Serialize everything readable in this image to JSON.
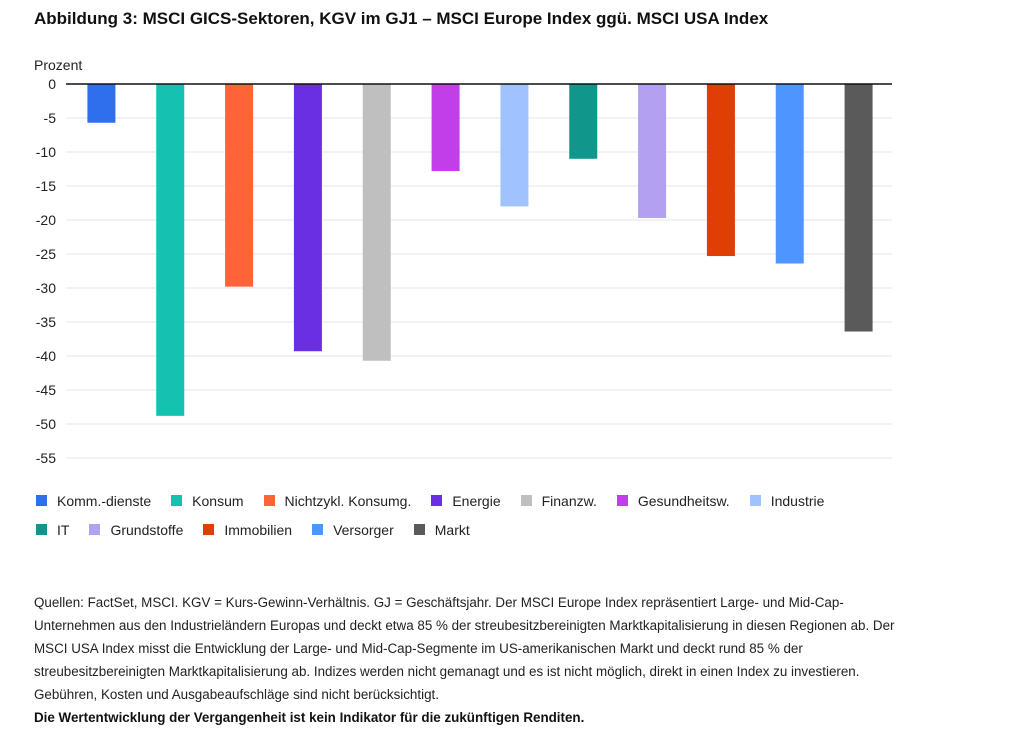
{
  "chart_data": {
    "type": "bar",
    "title": "Abbildung 3: MSCI GICS-Sektoren, KGV im GJ1 – MSCI Europe Index ggü. MSCI USA Index",
    "ylabel": "Prozent",
    "xlabel": "",
    "ylim": [
      -55,
      0
    ],
    "yticks": [
      0,
      -5,
      -10,
      -15,
      -20,
      -25,
      -30,
      -35,
      -40,
      -45,
      -50,
      -55
    ],
    "grid": true,
    "legend_position": "bottom",
    "categories": [
      "Komm.-dienste",
      "Konsum",
      "Nichtzykl. Konsumg.",
      "Energie",
      "Finanzw.",
      "Gesundheitsw.",
      "Industrie",
      "IT",
      "Grundstoffe",
      "Immobilien",
      "Versorger",
      "Markt"
    ],
    "values": [
      -5.7,
      -48.8,
      -29.8,
      -39.3,
      -40.7,
      -12.8,
      -18.0,
      -11.0,
      -19.7,
      -25.3,
      -26.4,
      -36.4
    ],
    "colors": [
      "#2f6fed",
      "#13c2b0",
      "#ff6438",
      "#6a2ee3",
      "#bfbfbf",
      "#c13ee8",
      "#9fc3ff",
      "#10968a",
      "#b3a0f0",
      "#e03e05",
      "#4f95ff",
      "#5a5a5a"
    ]
  },
  "notes": {
    "sources": "Quellen: FactSet, MSCI. KGV = Kurs-Gewinn-Verhältnis. GJ = Geschäftsjahr. Der MSCI Europe Index repräsentiert Large- und Mid-Cap-Unternehmen aus den Industrieländern Europas und deckt etwa 85 % der streubesitzbereinigten Marktkapitalisierung in diesen Regionen ab. Der MSCI USA Index misst die Entwicklung der Large- und Mid-Cap-Segmente im US-amerikanischen Markt und deckt rund 85 % der streubesitzbereinigten Marktkapitalisierung ab. Indizes werden nicht gemanagt und es ist nicht möglich, direkt in einen Index zu investieren. Gebühren, Kosten und Ausgabeaufschläge sind nicht berücksichtigt.",
    "disclaimer": "Die Wertentwicklung der Vergangenheit ist kein Indikator für die zukünftigen Renditen."
  }
}
